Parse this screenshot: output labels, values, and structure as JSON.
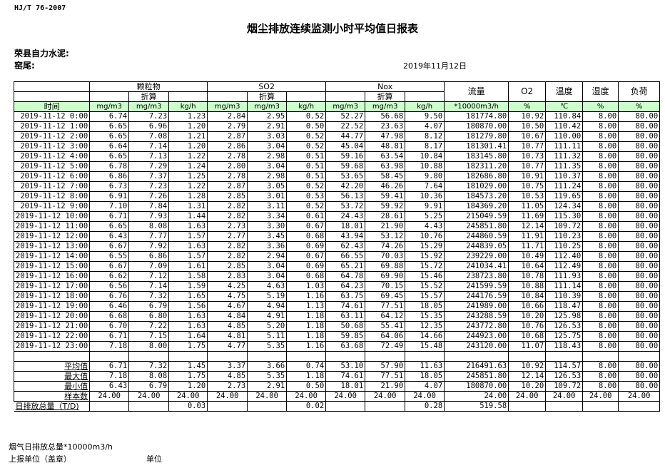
{
  "standard": "HJ/T  76-2007",
  "title": "烟尘排放连续监测小时平均值日报表",
  "company": "荣县自力水泥:",
  "kiln": "窑尾:",
  "date": "2019年11月12日",
  "header": {
    "groups": [
      "颗粒物",
      "SO2",
      "Nox"
    ],
    "converted": "折算",
    "time": "时间",
    "flow": "流量",
    "o2": "O2",
    "temp": "温度",
    "humidity": "湿度",
    "load": "负荷",
    "units": [
      "mg/m3",
      "mg/m3",
      "kg/h",
      "mg/m3",
      "mg/m3",
      "kg/h",
      "mg/m3",
      "mg/m3",
      "kg/h",
      "*10000m3/h",
      "%",
      "℃",
      "%",
      "%"
    ]
  },
  "header_color": "#ccffcc",
  "rows": [
    [
      "2019-11-12 0:00",
      "6.74",
      "7.23",
      "1.23",
      "2.84",
      "2.95",
      "0.52",
      "52.27",
      "56.68",
      "9.50",
      "181774.80",
      "10.92",
      "110.84",
      "8.00",
      "80.00"
    ],
    [
      "2019-11-12 1:00",
      "6.65",
      "6.96",
      "1.20",
      "2.79",
      "2.91",
      "0.50",
      "22.52",
      "23.63",
      "4.07",
      "180870.00",
      "10.50",
      "110.42",
      "8.00",
      "80.00"
    ],
    [
      "2019-11-12 2:00",
      "6.65",
      "7.08",
      "1.21",
      "2.87",
      "3.03",
      "0.52",
      "44.77",
      "47.98",
      "8.12",
      "181279.80",
      "10.67",
      "110.00",
      "8.00",
      "80.00"
    ],
    [
      "2019-11-12 3:00",
      "6.64",
      "7.14",
      "1.20",
      "2.86",
      "3.04",
      "0.52",
      "45.04",
      "48.81",
      "8.17",
      "181301.41",
      "10.77",
      "111.11",
      "8.00",
      "80.00"
    ],
    [
      "2019-11-12 4:00",
      "6.65",
      "7.13",
      "1.22",
      "2.78",
      "2.98",
      "0.51",
      "59.16",
      "63.54",
      "10.84",
      "183145.80",
      "10.73",
      "111.32",
      "8.00",
      "80.00"
    ],
    [
      "2019-11-12 5:00",
      "6.78",
      "7.29",
      "1.24",
      "2.80",
      "3.04",
      "0.51",
      "59.68",
      "63.98",
      "10.88",
      "182311.20",
      "10.77",
      "111.35",
      "8.00",
      "80.00"
    ],
    [
      "2019-11-12 6:00",
      "6.86",
      "7.37",
      "1.25",
      "2.78",
      "2.98",
      "0.51",
      "53.65",
      "58.45",
      "9.80",
      "182686.80",
      "10.91",
      "110.37",
      "8.00",
      "80.00"
    ],
    [
      "2019-11-12 7:00",
      "6.73",
      "7.23",
      "1.22",
      "2.87",
      "3.05",
      "0.52",
      "42.20",
      "46.26",
      "7.64",
      "181029.00",
      "10.75",
      "111.24",
      "8.00",
      "80.00"
    ],
    [
      "2019-11-12 8:00",
      "6.91",
      "7.26",
      "1.28",
      "2.85",
      "3.01",
      "0.53",
      "56.13",
      "59.41",
      "10.36",
      "184573.20",
      "10.53",
      "119.65",
      "8.00",
      "80.00"
    ],
    [
      "2019-11-12 9:00",
      "7.10",
      "7.84",
      "1.31",
      "2.82",
      "3.11",
      "0.52",
      "53.72",
      "59.92",
      "9.91",
      "184369.20",
      "11.05",
      "124.34",
      "8.00",
      "80.00"
    ],
    [
      "2019-11-12 10:00",
      "6.71",
      "7.93",
      "1.44",
      "2.82",
      "3.34",
      "0.61",
      "24.43",
      "28.61",
      "5.25",
      "215049.59",
      "11.69",
      "115.30",
      "8.00",
      "80.00"
    ],
    [
      "2019-11-12 11:00",
      "6.65",
      "8.08",
      "1.63",
      "2.73",
      "3.30",
      "0.67",
      "18.01",
      "21.90",
      "4.43",
      "245851.80",
      "12.14",
      "109.72",
      "8.00",
      "80.00"
    ],
    [
      "2019-11-12 12:00",
      "6.43",
      "7.77",
      "1.57",
      "2.77",
      "3.45",
      "0.68",
      "43.94",
      "53.12",
      "10.76",
      "244860.59",
      "11.91",
      "110.23",
      "8.00",
      "80.00"
    ],
    [
      "2019-11-12 13:00",
      "6.67",
      "7.92",
      "1.63",
      "2.82",
      "3.36",
      "0.69",
      "62.43",
      "74.26",
      "15.29",
      "244839.05",
      "11.71",
      "110.25",
      "8.00",
      "80.00"
    ],
    [
      "2019-11-12 14:00",
      "6.55",
      "6.86",
      "1.57",
      "2.82",
      "2.94",
      "0.67",
      "66.55",
      "70.03",
      "15.92",
      "239229.00",
      "10.49",
      "112.40",
      "8.00",
      "80.00"
    ],
    [
      "2019-11-12 15:00",
      "6.67",
      "7.09",
      "1.61",
      "2.85",
      "3.04",
      "0.69",
      "65.21",
      "69.88",
      "15.72",
      "241034.41",
      "10.64",
      "112.49",
      "8.00",
      "80.00"
    ],
    [
      "2019-11-12 16:00",
      "6.62",
      "7.12",
      "1.58",
      "2.83",
      "3.04",
      "0.68",
      "64.78",
      "69.90",
      "15.46",
      "238723.80",
      "10.78",
      "111.93",
      "8.00",
      "80.00"
    ],
    [
      "2019-11-12 17:00",
      "6.56",
      "7.14",
      "1.59",
      "4.25",
      "4.63",
      "1.03",
      "64.23",
      "70.15",
      "15.52",
      "241599.59",
      "10.88",
      "111.14",
      "8.00",
      "80.00"
    ],
    [
      "2019-11-12 18:00",
      "6.76",
      "7.32",
      "1.65",
      "4.75",
      "5.19",
      "1.16",
      "63.75",
      "69.45",
      "15.57",
      "244176.59",
      "10.84",
      "110.39",
      "8.00",
      "80.00"
    ],
    [
      "2019-11-12 19:00",
      "6.46",
      "6.79",
      "1.56",
      "4.67",
      "4.94",
      "1.13",
      "74.61",
      "77.51",
      "18.05",
      "241989.00",
      "10.66",
      "118.47",
      "8.00",
      "80.00"
    ],
    [
      "2019-11-12 20:00",
      "6.68",
      "6.80",
      "1.63",
      "4.84",
      "4.91",
      "1.18",
      "63.11",
      "64.12",
      "15.35",
      "243288.59",
      "10.20",
      "125.98",
      "8.00",
      "80.00"
    ],
    [
      "2019-11-12 21:00",
      "6.70",
      "7.22",
      "1.63",
      "4.85",
      "5.20",
      "1.18",
      "50.68",
      "55.41",
      "12.35",
      "243772.80",
      "10.76",
      "126.53",
      "8.00",
      "80.00"
    ],
    [
      "2019-11-12 22:00",
      "6.71",
      "7.15",
      "1.64",
      "4.81",
      "5.11",
      "1.18",
      "59.85",
      "64.06",
      "14.66",
      "244923.00",
      "10.68",
      "125.75",
      "8.00",
      "80.00"
    ],
    [
      "2019-11-12 23:00",
      "7.18",
      "8.00",
      "1.75",
      "4.77",
      "5.35",
      "1.16",
      "63.68",
      "72.49",
      "15.48",
      "243120.00",
      "11.07",
      "118.43",
      "8.00",
      "80.00"
    ]
  ],
  "stats": [
    [
      "平均值",
      "6.71",
      "7.32",
      "1.45",
      "3.37",
      "3.66",
      "0.74",
      "53.10",
      "57.90",
      "11.63",
      "216491.63",
      "10.92",
      "114.57",
      "8.00",
      "80.00"
    ],
    [
      "最大值",
      "7.18",
      "8.08",
      "1.75",
      "4.85",
      "5.35",
      "1.18",
      "74.61",
      "77.51",
      "18.05",
      "245851.80",
      "12.14",
      "126.53",
      "8.00",
      "80.00"
    ],
    [
      "最小值",
      "6.43",
      "6.79",
      "1.20",
      "2.73",
      "2.91",
      "0.50",
      "18.01",
      "21.90",
      "4.07",
      "180870.00",
      "10.20",
      "109.72",
      "8.00",
      "80.00"
    ],
    [
      "样本数",
      "24.00",
      "24.00",
      "24.00",
      "24.00",
      "24.00",
      "24.00",
      "24.00",
      "24.00",
      "24.00",
      "24.00",
      "24.00",
      "24.00",
      "24.00",
      "24.00"
    ],
    [
      "日排放总量（T/D)",
      "",
      "",
      "0.03",
      "",
      "",
      "0.02",
      "",
      "",
      "0.28",
      "519.58",
      "",
      "",
      "",
      ""
    ]
  ],
  "footer": {
    "flue_gas_total": "烟气日排放总量*10000m3/h",
    "reporting_unit": "上报单位（盖章）",
    "unit": "单位"
  }
}
